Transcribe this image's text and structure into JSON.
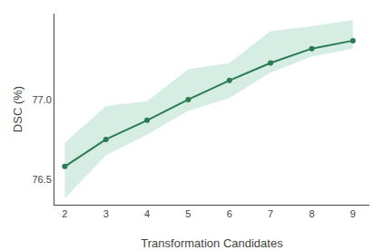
{
  "chart_data": {
    "type": "line",
    "xlabel": "Transformation Candidates",
    "ylabel": "DSC (%)",
    "x": [
      2,
      3,
      4,
      5,
      6,
      7,
      8,
      9
    ],
    "series": [
      {
        "values": [
          76.58,
          76.75,
          76.87,
          77.0,
          77.12,
          77.23,
          77.32,
          77.37
        ],
        "color": "#2a7a52",
        "marker": "circle",
        "line_style": "solid"
      }
    ],
    "band": {
      "upper": [
        76.73,
        76.96,
        76.99,
        77.19,
        77.23,
        77.43,
        77.46,
        77.5
      ],
      "lower": [
        76.38,
        76.65,
        76.78,
        76.93,
        77.01,
        77.17,
        77.27,
        77.32
      ],
      "color": "#b2dfcc"
    },
    "xlim": [
      1.75,
      9.4
    ],
    "xticks": [
      2,
      3,
      4,
      5,
      6,
      7,
      8,
      9
    ],
    "ylim": [
      76.34,
      77.54
    ],
    "yticks": [
      76.5,
      {
        "value": 77.0,
        "label": "77.0"
      }
    ],
    "grid": false
  }
}
